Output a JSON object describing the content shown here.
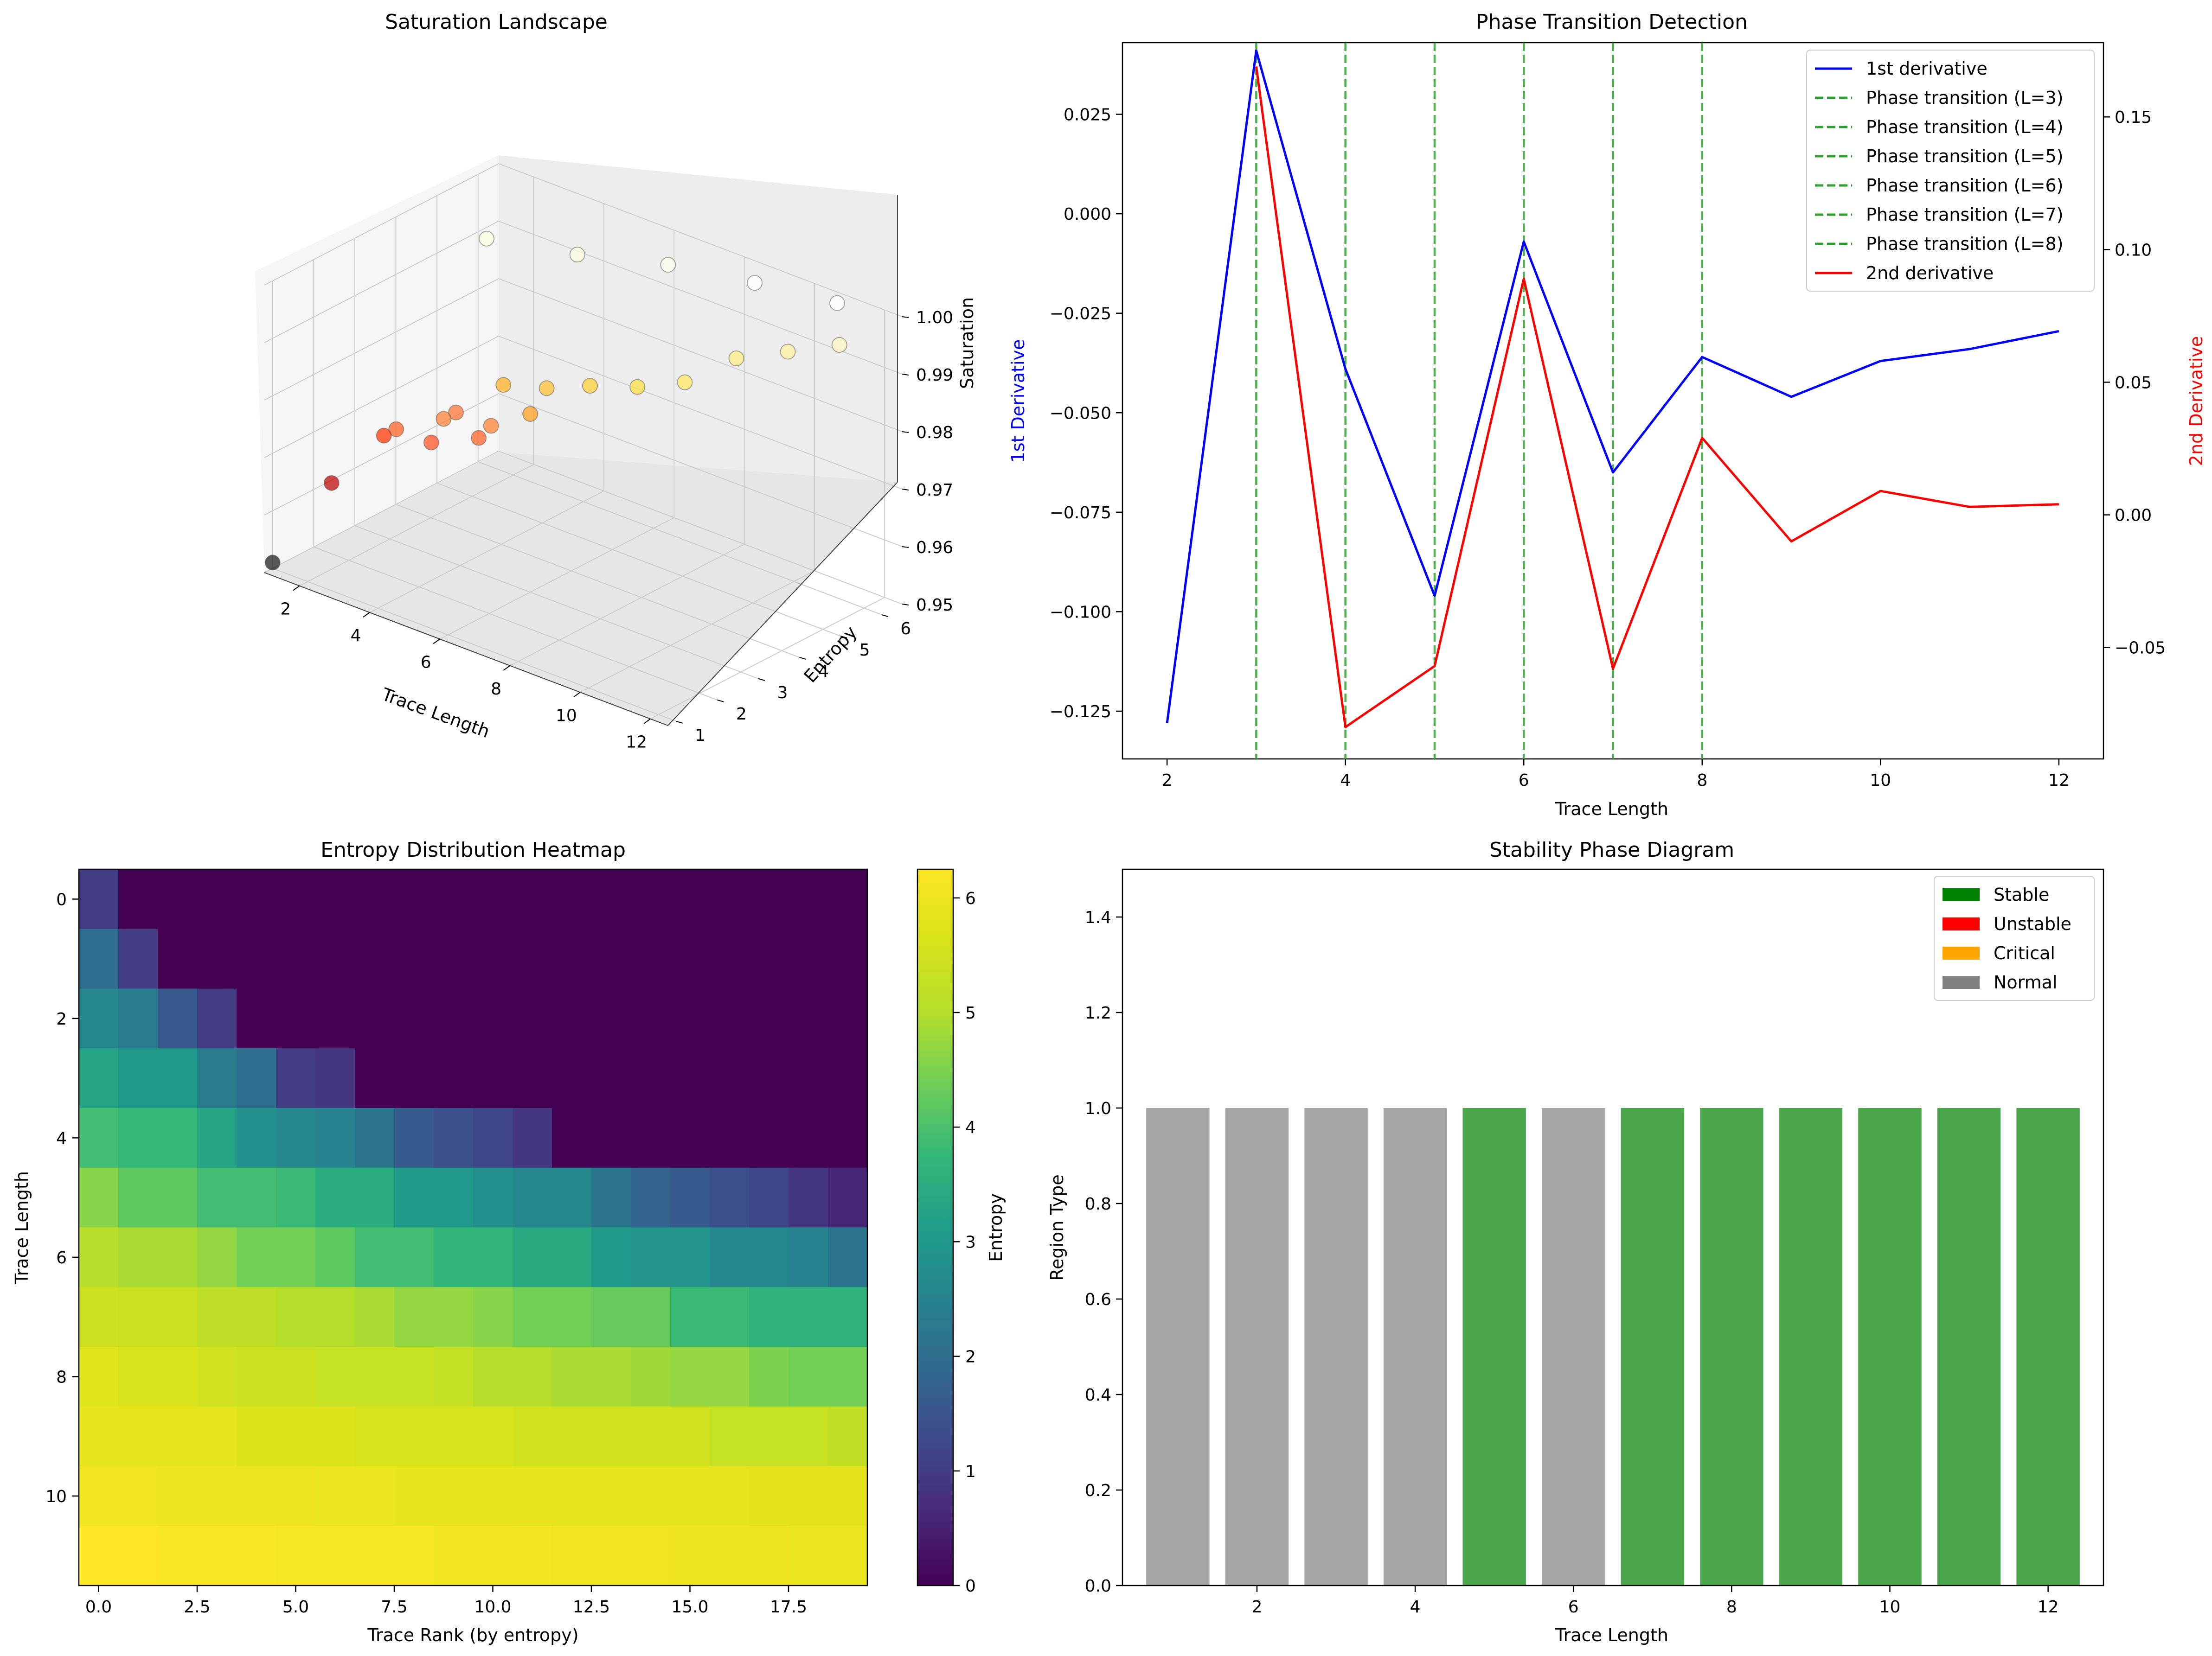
{
  "chart_data": [
    {
      "type": "scatter3d",
      "title": "Saturation Landscape",
      "xlabel": "Trace Length",
      "ylabel": "Entropy",
      "zlabel": "Saturation",
      "x_ticks": [
        "2",
        "4",
        "6",
        "8",
        "10",
        "12"
      ],
      "y_ticks": [
        "1",
        "2",
        "3",
        "4",
        "5",
        "6"
      ],
      "z_ticks": [
        "0.95",
        "0.96",
        "0.97",
        "0.98",
        "0.99",
        "1.00"
      ],
      "xlim": [
        1,
        12.5
      ],
      "ylim": [
        0.8,
        6.5
      ],
      "zlim": [
        0.95,
        1.0
      ],
      "points": [
        {
          "x": 1,
          "y": 1.0,
          "z": 0.951,
          "color": "#1a1a1a"
        },
        {
          "x": 2,
          "y": 1.58,
          "z": 0.965,
          "color": "#c00000"
        },
        {
          "x": 3,
          "y": 2.0,
          "z": 0.974,
          "color": "#ff3000"
        },
        {
          "x": 3,
          "y": 2.3,
          "z": 0.974,
          "color": "#ff6020"
        },
        {
          "x": 4,
          "y": 2.3,
          "z": 0.974,
          "color": "#ff5020"
        },
        {
          "x": 4,
          "y": 2.6,
          "z": 0.977,
          "color": "#ff8030"
        },
        {
          "x": 4,
          "y": 2.9,
          "z": 0.977,
          "color": "#ff7030"
        },
        {
          "x": 5,
          "y": 2.6,
          "z": 0.976,
          "color": "#ff6020"
        },
        {
          "x": 5,
          "y": 2.9,
          "z": 0.977,
          "color": "#ff8030"
        },
        {
          "x": 5,
          "y": 3.2,
          "z": 0.983,
          "color": "#ffb020"
        },
        {
          "x": 6,
          "y": 3.0,
          "z": 0.981,
          "color": "#ffa020"
        },
        {
          "x": 6,
          "y": 3.4,
          "z": 0.984,
          "color": "#ffc030"
        },
        {
          "x": 7,
          "y": 3.6,
          "z": 0.986,
          "color": "#ffd030"
        },
        {
          "x": 8,
          "y": 3.9,
          "z": 0.987,
          "color": "#ffe040"
        },
        {
          "x": 9,
          "y": 4.2,
          "z": 0.989,
          "color": "#ffe860"
        },
        {
          "x": 10,
          "y": 4.6,
          "z": 0.994,
          "color": "#fff080"
        },
        {
          "x": 11,
          "y": 5.0,
          "z": 0.996,
          "color": "#fff4a0"
        },
        {
          "x": 12,
          "y": 5.4,
          "z": 0.998,
          "color": "#fff8c0"
        },
        {
          "x": 3,
          "y": 4.5,
          "z": 0.999,
          "color": "#fffde0"
        },
        {
          "x": 5,
          "y": 5.0,
          "z": 0.999,
          "color": "#fffde0"
        },
        {
          "x": 7,
          "y": 5.5,
          "z": 1.0,
          "color": "#fffef0"
        },
        {
          "x": 9,
          "y": 5.9,
          "z": 1.0,
          "color": "#ffffff"
        },
        {
          "x": 11,
          "y": 6.2,
          "z": 1.0,
          "color": "#ffffff"
        }
      ]
    },
    {
      "type": "line",
      "title": "Phase Transition Detection",
      "xlabel": "Trace Length",
      "ylabel": "1st Derivative",
      "y2label": "2nd Derivative",
      "xlim": [
        1.5,
        12.5
      ],
      "ylim": [
        -0.137,
        0.043
      ],
      "y2lim": [
        -0.092,
        0.178
      ],
      "x_ticks": [
        2,
        4,
        6,
        8,
        10,
        12
      ],
      "y_ticks": [
        0.025,
        0.0,
        -0.025,
        -0.05,
        -0.075,
        -0.1,
        -0.125
      ],
      "y_tick_labels": [
        "0.025",
        "0.000",
        "−0.025",
        "−0.050",
        "−0.075",
        "−0.100",
        "−0.125"
      ],
      "y2_ticks": [
        0.15,
        0.1,
        0.05,
        0.0,
        -0.05
      ],
      "y2_tick_labels": [
        "0.15",
        "0.10",
        "0.05",
        "0.00",
        "−0.05"
      ],
      "x": [
        2,
        3,
        4,
        5,
        6,
        7,
        8,
        9,
        10,
        11,
        12
      ],
      "series": [
        {
          "name": "1st derivative",
          "axis": "left",
          "color": "#0000ff",
          "values": [
            -0.128,
            0.041,
            -0.039,
            -0.096,
            -0.007,
            -0.065,
            -0.036,
            -0.046,
            -0.037,
            -0.034,
            -0.0295
          ]
        },
        {
          "name": "2nd derivative",
          "axis": "right",
          "color": "#ff0000",
          "x": [
            3,
            4,
            5,
            6,
            7,
            8,
            9,
            10,
            11,
            12
          ],
          "values": [
            0.169,
            -0.08,
            -0.057,
            0.089,
            -0.058,
            0.029,
            -0.01,
            0.009,
            0.003,
            0.004
          ]
        }
      ],
      "vlines": [
        {
          "x": 3,
          "label": "Phase transition (L=3)"
        },
        {
          "x": 4,
          "label": "Phase transition (L=4)"
        },
        {
          "x": 5,
          "label": "Phase transition (L=5)"
        },
        {
          "x": 6,
          "label": "Phase transition (L=6)"
        },
        {
          "x": 7,
          "label": "Phase transition (L=7)"
        },
        {
          "x": 8,
          "label": "Phase transition (L=8)"
        }
      ],
      "vline_color": "#2ca02c",
      "legend": [
        "1st derivative",
        "Phase transition (L=3)",
        "Phase transition (L=4)",
        "Phase transition (L=5)",
        "Phase transition (L=6)",
        "Phase transition (L=7)",
        "Phase transition (L=8)",
        "2nd derivative"
      ]
    },
    {
      "type": "heatmap",
      "title": "Entropy Distribution Heatmap",
      "xlabel": "Trace Rank (by entropy)",
      "ylabel": "Trace Length",
      "colorbar_label": "Entropy",
      "x_ticks": [
        0,
        2.5,
        5.0,
        7.5,
        10.0,
        12.5,
        15.0,
        17.5
      ],
      "x_tick_labels": [
        "0.0",
        "2.5",
        "5.0",
        "7.5",
        "10.0",
        "12.5",
        "15.0",
        "17.5"
      ],
      "y_ticks": [
        0,
        2,
        4,
        6,
        8,
        10
      ],
      "colorbar_ticks": [
        0,
        1,
        2,
        3,
        4,
        5,
        6
      ],
      "vmin": 0,
      "vmax": 6.25,
      "rows": [
        [
          1.0,
          0,
          0,
          0,
          0,
          0,
          0,
          0,
          0,
          0,
          0,
          0,
          0,
          0,
          0,
          0,
          0,
          0,
          0,
          0
        ],
        [
          2.0,
          1.0,
          0,
          0,
          0,
          0,
          0,
          0,
          0,
          0,
          0,
          0,
          0,
          0,
          0,
          0,
          0,
          0,
          0,
          0
        ],
        [
          2.58,
          2.32,
          1.58,
          1.0,
          0,
          0,
          0,
          0,
          0,
          0,
          0,
          0,
          0,
          0,
          0,
          0,
          0,
          0,
          0,
          0
        ],
        [
          3.3,
          3.0,
          3.0,
          2.32,
          2.0,
          1.0,
          0.92,
          0,
          0,
          0,
          0,
          0,
          0,
          0,
          0,
          0,
          0,
          0,
          0,
          0
        ],
        [
          3.9,
          3.75,
          3.75,
          3.3,
          2.8,
          2.6,
          2.5,
          2.2,
          1.6,
          1.4,
          1.2,
          0.9,
          0,
          0,
          0,
          0,
          0,
          0,
          0,
          0
        ],
        [
          4.6,
          4.2,
          4.2,
          3.9,
          3.9,
          3.8,
          3.5,
          3.5,
          3.0,
          3.0,
          2.8,
          2.6,
          2.6,
          2.2,
          1.8,
          1.6,
          1.4,
          1.2,
          0.9,
          0.6
        ],
        [
          5.0,
          4.9,
          4.9,
          4.7,
          4.4,
          4.4,
          4.2,
          3.9,
          3.9,
          3.7,
          3.7,
          3.4,
          3.4,
          3.0,
          2.9,
          2.9,
          2.6,
          2.6,
          2.5,
          2.2
        ],
        [
          5.45,
          5.35,
          5.35,
          5.15,
          5.15,
          5.0,
          5.0,
          4.9,
          4.7,
          4.7,
          4.6,
          4.4,
          4.4,
          4.3,
          4.3,
          3.8,
          3.8,
          3.6,
          3.6,
          3.6
        ],
        [
          5.75,
          5.6,
          5.6,
          5.5,
          5.4,
          5.4,
          5.3,
          5.3,
          5.3,
          5.25,
          5.0,
          5.0,
          4.9,
          4.9,
          4.8,
          4.7,
          4.7,
          4.5,
          4.4,
          4.4
        ],
        [
          5.85,
          5.85,
          5.85,
          5.85,
          5.7,
          5.7,
          5.7,
          5.6,
          5.6,
          5.6,
          5.6,
          5.5,
          5.5,
          5.5,
          5.5,
          5.5,
          5.3,
          5.3,
          5.3,
          5.2
        ],
        [
          6.05,
          6.05,
          6.0,
          6.0,
          6.0,
          6.0,
          5.95,
          5.95,
          5.9,
          5.9,
          5.9,
          5.85,
          5.85,
          5.85,
          5.85,
          5.85,
          5.85,
          5.8,
          5.8,
          5.8
        ],
        [
          6.25,
          6.25,
          6.2,
          6.2,
          6.2,
          6.15,
          6.15,
          6.15,
          6.15,
          6.1,
          6.1,
          6.1,
          6.05,
          6.05,
          6.05,
          6.0,
          6.0,
          6.0,
          5.95,
          5.95
        ]
      ]
    },
    {
      "type": "bar",
      "title": "Stability Phase Diagram",
      "xlabel": "Trace Length",
      "ylabel": "Region Type",
      "xlim": [
        0.3,
        12.7
      ],
      "ylim": [
        0,
        1.5
      ],
      "x_ticks": [
        2,
        4,
        6,
        8,
        10,
        12
      ],
      "y_ticks": [
        0.0,
        0.2,
        0.4,
        0.6,
        0.8,
        1.0,
        1.2,
        1.4
      ],
      "y_tick_labels": [
        "0.0",
        "0.2",
        "0.4",
        "0.6",
        "0.8",
        "1.0",
        "1.2",
        "1.4"
      ],
      "categories": [
        1,
        2,
        3,
        4,
        5,
        6,
        7,
        8,
        9,
        10,
        11,
        12
      ],
      "values": [
        1,
        1,
        1,
        1,
        1,
        1,
        1,
        1,
        1,
        1,
        1,
        1
      ],
      "region": [
        "Normal",
        "Normal",
        "Normal",
        "Normal",
        "Stable",
        "Normal",
        "Stable",
        "Stable",
        "Stable",
        "Stable",
        "Stable",
        "Stable"
      ],
      "legend": [
        {
          "label": "Stable",
          "color": "#008000"
        },
        {
          "label": "Unstable",
          "color": "#ff0000"
        },
        {
          "label": "Critical",
          "color": "#ffa500"
        },
        {
          "label": "Normal",
          "color": "#808080"
        }
      ]
    }
  ]
}
